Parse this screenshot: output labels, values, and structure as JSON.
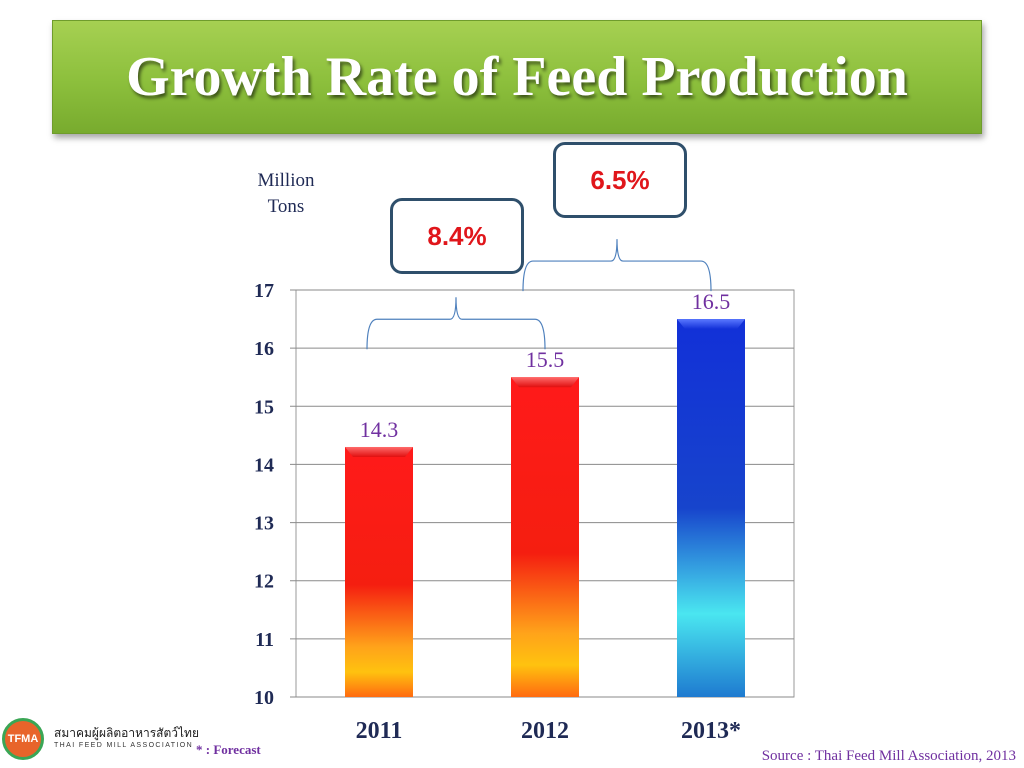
{
  "title": "Growth Rate of Feed Production",
  "unit_label_line1": "Million",
  "unit_label_line2": "Tons",
  "growth_labels": [
    "8.4%",
    "6.5%"
  ],
  "chart_data": {
    "type": "bar",
    "title": "Growth Rate of Feed Production",
    "ylabel": "Million Tons",
    "xlabel": "",
    "categories": [
      "2011",
      "2012",
      "2013*"
    ],
    "values": [
      14.3,
      15.5,
      16.5
    ],
    "data_labels": [
      "14.3",
      "15.5",
      "16.5"
    ],
    "ylim": [
      10,
      17
    ],
    "yticks": [
      "10",
      "11",
      "12",
      "13",
      "14",
      "15",
      "16",
      "17"
    ],
    "grid": true,
    "legend": "none",
    "bar_colors": [
      "red-gradient",
      "red-gradient",
      "blue-gradient"
    ]
  },
  "logo": {
    "abbr": "TFMA",
    "thai_name": "สมาคมผู้ผลิตอาหารสัตว์ไทย",
    "english_name": "THAI FEED MILL ASSOCIATION"
  },
  "footnote": "* : Forecast",
  "source": "Source : Thai Feed Mill Association, 2013",
  "colors": {
    "banner": "#8cbf3c",
    "data_label": "#7030a0",
    "growth_text": "#e0161b",
    "axis_text": "#1f2a55"
  }
}
